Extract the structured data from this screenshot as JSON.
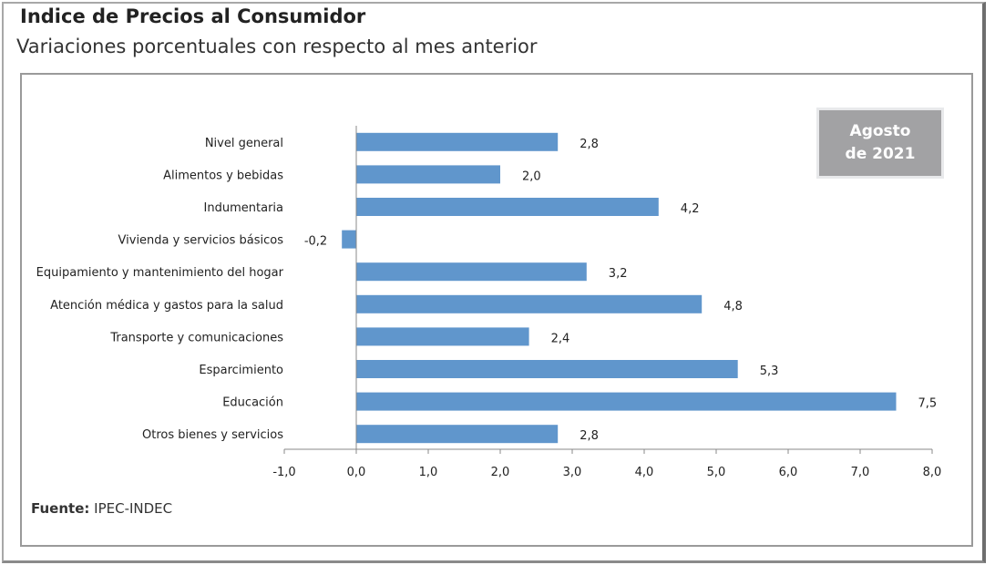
{
  "header": {
    "title": "Indice de Precios al Consumidor",
    "subtitle": "Variaciones porcentuales con respecto al mes anterior"
  },
  "period_badge": {
    "line1": "Agosto",
    "line2": "de 2021"
  },
  "source": {
    "label": "Fuente:",
    "value": "IPEC-INDEC"
  },
  "chart_data": {
    "type": "bar",
    "orientation": "horizontal",
    "categories": [
      "Nivel  general",
      "Alimentos y bebidas",
      "Indumentaria",
      "Vivienda y servicios básicos",
      "Equipamiento y  mantenimiento del hogar",
      "Atención médica y gastos para la salud",
      "Transporte y comunicaciones",
      "Esparcimiento",
      "Educación",
      "Otros bienes y servicios"
    ],
    "values": [
      2.8,
      2.0,
      4.2,
      -0.2,
      3.2,
      4.8,
      2.4,
      5.3,
      7.5,
      2.8
    ],
    "data_labels": [
      "2,8",
      "2,0",
      "4,2",
      "-0,2",
      "3,2",
      "4,8",
      "2,4",
      "5,3",
      "7,5",
      "2,8"
    ],
    "xlim": [
      -1,
      8
    ],
    "x_ticks": [
      "-1,0",
      "0,0",
      "1,0",
      "2,0",
      "3,0",
      "4,0",
      "5,0",
      "6,0",
      "7,0",
      "8,0"
    ],
    "grid": false,
    "bar_color": "#6096cc",
    "title": "Indice de Precios al Consumidor",
    "subtitle": "Variaciones porcentuales con respecto al mes anterior"
  }
}
